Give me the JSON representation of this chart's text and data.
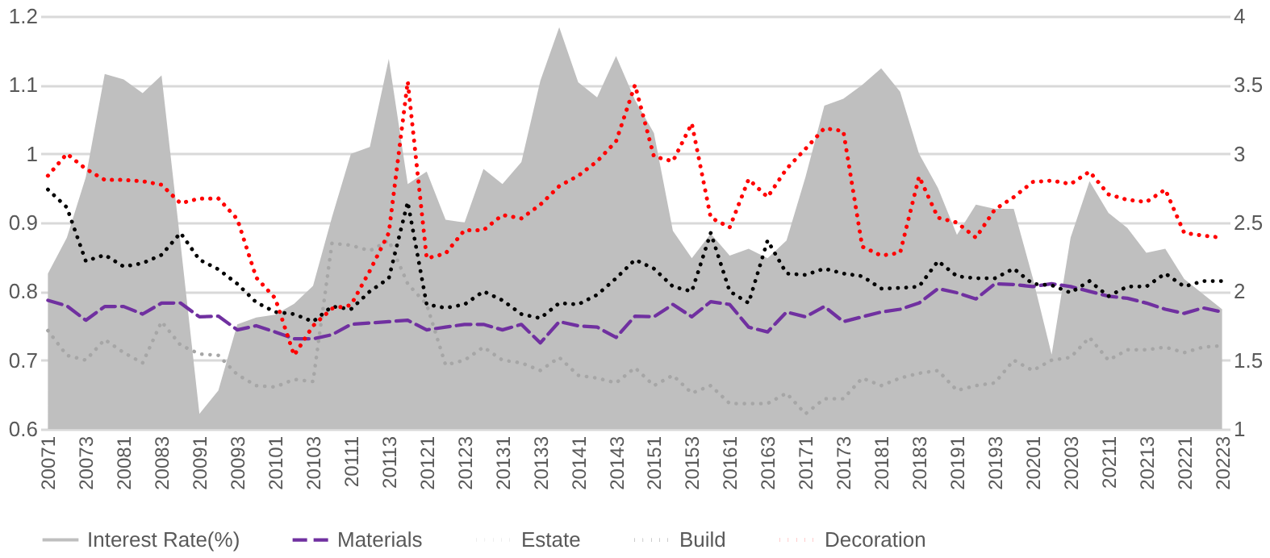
{
  "chart_data": {
    "type": "line",
    "categories": [
      "20071",
      null,
      "20073",
      null,
      "20081",
      null,
      "20083",
      null,
      "20091",
      null,
      "20093",
      null,
      "20101",
      null,
      "20103",
      null,
      "20111",
      null,
      "20113",
      null,
      "20121",
      null,
      "20123",
      null,
      "20131",
      null,
      "20133",
      null,
      "20141",
      null,
      "20143",
      null,
      "20151",
      null,
      "20153",
      null,
      "20161",
      null,
      "20163",
      null,
      "20171",
      null,
      "20173",
      null,
      "20181",
      null,
      "20183",
      null,
      "20191",
      null,
      "20193",
      null,
      "20201",
      null,
      "20203",
      null,
      "20211",
      null,
      "20213",
      null,
      "20221",
      null,
      "20223"
    ],
    "series": [
      {
        "name": "Interest Rate(%)",
        "type": "area",
        "axis": "y2",
        "color": "#bfbfbf",
        "values": [
          2.13,
          2.39,
          2.83,
          3.58,
          3.54,
          3.44,
          3.57,
          2.35,
          1.11,
          1.28,
          1.76,
          1.81,
          1.83,
          1.91,
          2.04,
          2.54,
          3.0,
          3.05,
          3.69,
          2.78,
          2.87,
          2.52,
          2.5,
          2.89,
          2.78,
          2.94,
          3.53,
          3.92,
          3.52,
          3.41,
          3.71,
          3.39,
          3.15,
          2.44,
          2.24,
          2.42,
          2.26,
          2.31,
          2.24,
          2.37,
          2.83,
          3.35,
          3.4,
          3.5,
          3.62,
          3.45,
          3.0,
          2.75,
          2.41,
          2.63,
          2.6,
          2.6,
          2.1,
          1.54,
          2.39,
          2.8,
          2.57,
          2.46,
          2.28,
          2.31,
          2.09,
          1.98,
          1.87
        ]
      },
      {
        "name": "Materials",
        "type": "line",
        "line_style": "dashed",
        "color": "#7030a0",
        "values": [
          0.787,
          0.779,
          0.758,
          0.778,
          0.778,
          0.767,
          0.783,
          0.783,
          0.763,
          0.764,
          0.744,
          0.75,
          0.741,
          0.731,
          0.731,
          0.737,
          0.752,
          0.754,
          0.756,
          0.758,
          0.744,
          0.748,
          0.752,
          0.752,
          0.744,
          0.752,
          0.725,
          0.756,
          0.75,
          0.748,
          0.733,
          0.764,
          0.763,
          0.781,
          0.763,
          0.785,
          0.781,
          0.748,
          0.741,
          0.77,
          0.763,
          0.778,
          0.756,
          0.763,
          0.77,
          0.774,
          0.783,
          0.804,
          0.798,
          0.789,
          0.811,
          0.81,
          0.807,
          0.811,
          0.807,
          0.8,
          0.793,
          0.79,
          0.783,
          0.774,
          0.768,
          0.776,
          0.77
        ]
      },
      {
        "name": "Estate",
        "type": "line",
        "line_style": "dotted",
        "color": "#a6a6a6",
        "values": [
          0.743,
          0.707,
          0.7,
          0.73,
          0.711,
          0.696,
          0.756,
          0.722,
          0.709,
          0.707,
          0.679,
          0.663,
          0.661,
          0.672,
          0.669,
          0.87,
          0.867,
          0.859,
          0.874,
          0.811,
          0.781,
          0.693,
          0.7,
          0.719,
          0.7,
          0.696,
          0.685,
          0.704,
          0.678,
          0.674,
          0.667,
          0.689,
          0.663,
          0.678,
          0.652,
          0.663,
          0.637,
          0.637,
          0.637,
          0.652,
          0.622,
          0.644,
          0.644,
          0.674,
          0.663,
          0.674,
          0.681,
          0.685,
          0.656,
          0.663,
          0.667,
          0.7,
          0.685,
          0.7,
          0.704,
          0.733,
          0.7,
          0.715,
          0.715,
          0.719,
          0.711,
          0.719,
          0.721
        ]
      },
      {
        "name": "Build",
        "type": "line",
        "line_style": "dotted",
        "color": "#000000",
        "values": [
          0.948,
          0.922,
          0.844,
          0.853,
          0.836,
          0.841,
          0.853,
          0.885,
          0.846,
          0.832,
          0.811,
          0.784,
          0.77,
          0.767,
          0.756,
          0.778,
          0.774,
          0.8,
          0.819,
          0.93,
          0.781,
          0.776,
          0.781,
          0.8,
          0.787,
          0.767,
          0.761,
          0.783,
          0.781,
          0.795,
          0.819,
          0.846,
          0.833,
          0.807,
          0.8,
          0.885,
          0.8,
          0.783,
          0.874,
          0.826,
          0.824,
          0.833,
          0.826,
          0.822,
          0.804,
          0.805,
          0.807,
          0.844,
          0.822,
          0.819,
          0.819,
          0.833,
          0.811,
          0.809,
          0.798,
          0.815,
          0.793,
          0.807,
          0.807,
          0.826,
          0.807,
          0.815,
          0.815
        ]
      },
      {
        "name": "Decoration",
        "type": "line",
        "line_style": "dotted",
        "color": "#ff0000",
        "values": [
          0.968,
          1.0,
          0.978,
          0.962,
          0.962,
          0.96,
          0.955,
          0.928,
          0.935,
          0.935,
          0.905,
          0.82,
          0.79,
          0.707,
          0.75,
          0.775,
          0.78,
          0.83,
          0.885,
          1.105,
          0.848,
          0.855,
          0.889,
          0.889,
          0.911,
          0.906,
          0.926,
          0.953,
          0.968,
          0.989,
          1.018,
          1.1,
          0.996,
          0.989,
          1.044,
          0.907,
          0.893,
          0.963,
          0.937,
          0.978,
          1.007,
          1.037,
          1.033,
          0.865,
          0.852,
          0.856,
          0.967,
          0.907,
          0.9,
          0.878,
          0.919,
          0.937,
          0.959,
          0.961,
          0.956,
          0.974,
          0.941,
          0.933,
          0.93,
          0.948,
          0.885,
          0.881,
          0.878
        ]
      }
    ],
    "ylim": [
      0.6,
      1.2
    ],
    "yticks": [
      0.6,
      0.7,
      0.8,
      0.9,
      1,
      1.1,
      1.2
    ],
    "y2lim": [
      1,
      4
    ],
    "y2ticks": [
      1,
      1.5,
      2,
      2.5,
      3,
      3.5,
      4
    ],
    "grid": "y",
    "legend": "bottom"
  }
}
